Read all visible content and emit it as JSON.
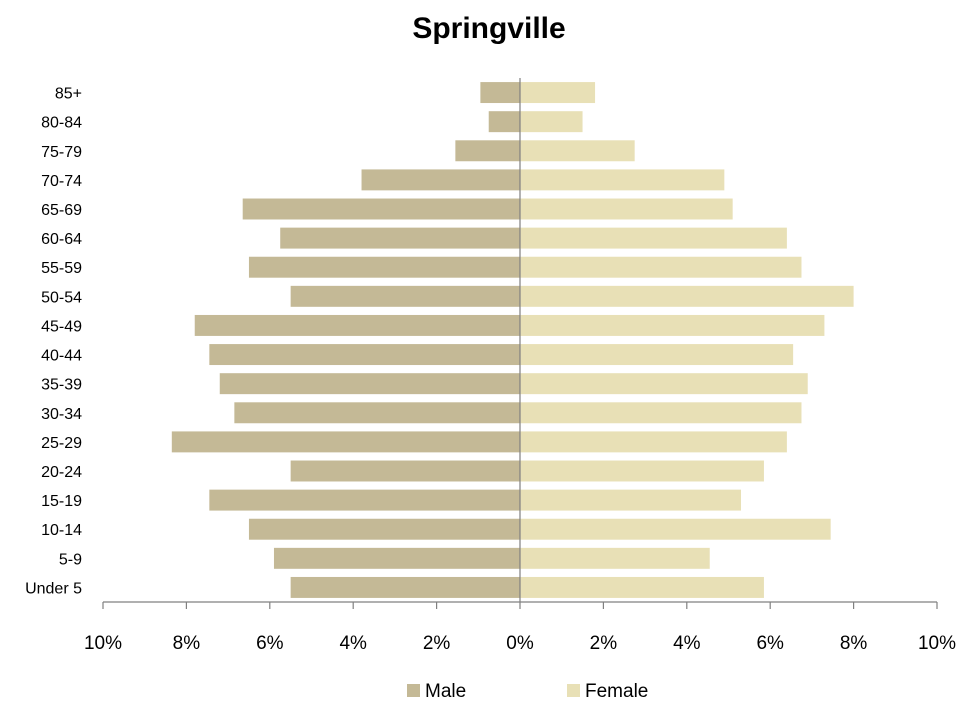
{
  "chart_data": {
    "type": "bar",
    "orientation": "horizontal",
    "title": "Springville",
    "categories": [
      "Under 5",
      "5-9",
      "10-14",
      "15-19",
      "20-24",
      "25-29",
      "30-34",
      "35-39",
      "40-44",
      "45-49",
      "50-54",
      "55-59",
      "60-64",
      "65-69",
      "70-74",
      "75-79",
      "80-84",
      "85+"
    ],
    "series": [
      {
        "name": "Male",
        "color": "#c4b996",
        "values": [
          5.5,
          5.9,
          6.5,
          7.45,
          5.5,
          8.35,
          6.85,
          7.2,
          7.45,
          7.8,
          5.5,
          6.5,
          5.75,
          6.65,
          3.8,
          1.55,
          0.75,
          0.95
        ]
      },
      {
        "name": "Female",
        "color": "#e8e0b6",
        "values": [
          5.85,
          4.55,
          7.45,
          5.3,
          5.85,
          6.4,
          6.75,
          6.9,
          6.55,
          7.3,
          8.0,
          6.75,
          6.4,
          5.1,
          4.9,
          2.75,
          1.5,
          1.8
        ]
      }
    ],
    "xlim": [
      -10,
      10
    ],
    "x_ticks": [
      -10,
      -8,
      -6,
      -4,
      -2,
      0,
      2,
      4,
      6,
      8,
      10
    ],
    "x_tick_labels": [
      "10%",
      "8%",
      "6%",
      "4%",
      "2%",
      "0%",
      "2%",
      "4%",
      "6%",
      "8%",
      "10%"
    ],
    "grid": false,
    "legend_position": "bottom"
  }
}
